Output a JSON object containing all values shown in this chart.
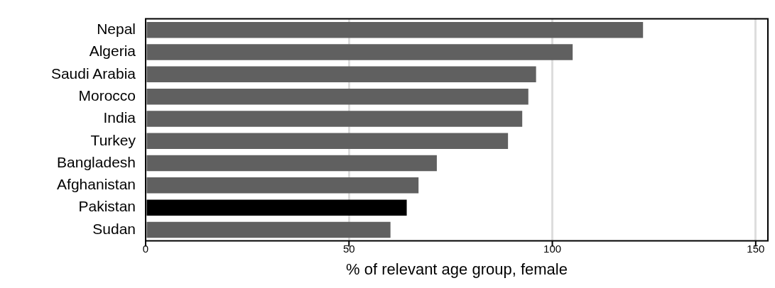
{
  "chart_data": {
    "type": "bar",
    "orientation": "horizontal",
    "xlabel": "% of relevant age group, female",
    "categories": [
      "Nepal",
      "Algeria",
      "Saudi Arabia",
      "Morocco",
      "India",
      "Turkey",
      "Bangladesh",
      "Afghanistan",
      "Pakistan",
      "Sudan"
    ],
    "values": [
      122.3,
      105.0,
      96.0,
      94.1,
      92.6,
      89.1,
      71.6,
      67.1,
      64.2,
      60.2
    ],
    "colors": [
      "#606060",
      "#606060",
      "#606060",
      "#606060",
      "#606060",
      "#606060",
      "#606060",
      "#606060",
      "#000000",
      "#606060"
    ],
    "xlim": [
      0,
      153
    ],
    "xticks": [
      0,
      50,
      100,
      150
    ],
    "grid": "x",
    "legend": false
  }
}
